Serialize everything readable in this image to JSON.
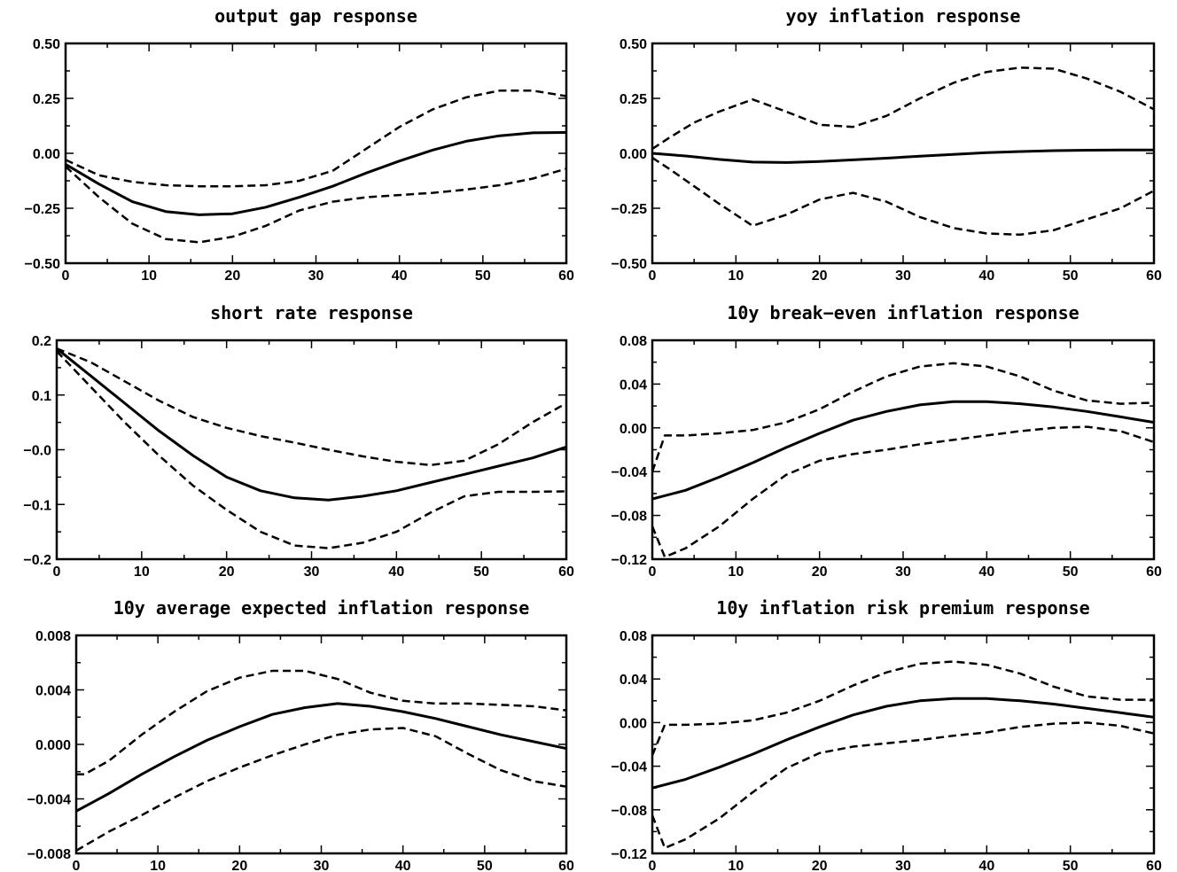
{
  "chart_data": [
    {
      "type": "line",
      "title": "output gap response",
      "xlim": [
        0,
        60
      ],
      "ylim": [
        -0.5,
        0.5
      ],
      "xticks": [
        0,
        10,
        20,
        30,
        40,
        50,
        60
      ],
      "yticks": [
        -0.5,
        -0.25,
        0.0,
        0.25,
        0.5
      ],
      "yticklabels": [
        "−0.50",
        "−0.25",
        "0.00",
        "0.25",
        "0.50"
      ],
      "grid": false,
      "series": [
        {
          "style": "solid",
          "x": [
            0,
            4,
            8,
            12,
            16,
            20,
            24,
            28,
            32,
            36,
            40,
            44,
            48,
            52,
            56,
            60
          ],
          "y": [
            -0.05,
            -0.14,
            -0.22,
            -0.265,
            -0.28,
            -0.275,
            -0.245,
            -0.2,
            -0.15,
            -0.09,
            -0.035,
            0.015,
            0.055,
            0.08,
            0.093,
            0.095
          ]
        },
        {
          "style": "dashed",
          "x": [
            0,
            4,
            8,
            12,
            16,
            20,
            24,
            28,
            32,
            36,
            40,
            44,
            48,
            52,
            56,
            60
          ],
          "y": [
            -0.03,
            -0.1,
            -0.13,
            -0.145,
            -0.15,
            -0.15,
            -0.145,
            -0.125,
            -0.08,
            0.02,
            0.12,
            0.2,
            0.255,
            0.285,
            0.285,
            0.26
          ]
        },
        {
          "style": "dashed",
          "x": [
            0,
            4,
            8,
            12,
            16,
            20,
            24,
            28,
            32,
            36,
            40,
            44,
            48,
            52,
            56,
            60
          ],
          "y": [
            -0.06,
            -0.2,
            -0.32,
            -0.39,
            -0.405,
            -0.38,
            -0.33,
            -0.26,
            -0.22,
            -0.2,
            -0.19,
            -0.18,
            -0.165,
            -0.145,
            -0.115,
            -0.07
          ]
        }
      ]
    },
    {
      "type": "line",
      "title": "yoy inflation response",
      "xlim": [
        0,
        60
      ],
      "ylim": [
        -0.5,
        0.5
      ],
      "xticks": [
        0,
        10,
        20,
        30,
        40,
        50,
        60
      ],
      "yticks": [
        -0.5,
        -0.25,
        0.0,
        0.25,
        0.5
      ],
      "yticklabels": [
        "−0.50",
        "−0.25",
        "0.00",
        "0.25",
        "0.50"
      ],
      "grid": false,
      "series": [
        {
          "style": "solid",
          "x": [
            0,
            4,
            8,
            12,
            16,
            20,
            24,
            28,
            32,
            36,
            40,
            44,
            48,
            52,
            56,
            60
          ],
          "y": [
            0.0,
            -0.012,
            -0.028,
            -0.04,
            -0.042,
            -0.037,
            -0.03,
            -0.022,
            -0.013,
            -0.005,
            0.003,
            0.008,
            0.012,
            0.014,
            0.015,
            0.015
          ]
        },
        {
          "style": "dashed",
          "x": [
            0,
            2,
            5,
            8,
            12,
            16,
            20,
            24,
            28,
            32,
            36,
            40,
            44,
            48,
            52,
            56,
            60
          ],
          "y": [
            0.02,
            0.07,
            0.14,
            0.19,
            0.245,
            0.19,
            0.13,
            0.12,
            0.17,
            0.25,
            0.32,
            0.37,
            0.39,
            0.385,
            0.34,
            0.28,
            0.2
          ]
        },
        {
          "style": "dashed",
          "x": [
            0,
            2,
            5,
            8,
            12,
            16,
            20,
            24,
            28,
            32,
            36,
            40,
            44,
            48,
            52,
            56,
            60
          ],
          "y": [
            -0.02,
            -0.07,
            -0.15,
            -0.23,
            -0.33,
            -0.28,
            -0.21,
            -0.18,
            -0.22,
            -0.29,
            -0.34,
            -0.365,
            -0.37,
            -0.35,
            -0.3,
            -0.25,
            -0.17
          ]
        }
      ]
    },
    {
      "type": "line",
      "title": "short rate response",
      "xlim": [
        0,
        60
      ],
      "ylim": [
        -0.2,
        0.2
      ],
      "xticks": [
        0,
        10,
        20,
        30,
        40,
        50,
        60
      ],
      "yticks": [
        -0.2,
        -0.1,
        0.0,
        0.1,
        0.2
      ],
      "yticklabels": [
        "−0.2",
        "−0.1",
        "−0.0",
        "0.1",
        "0.2"
      ],
      "grid": false,
      "series": [
        {
          "style": "solid",
          "x": [
            0,
            4,
            8,
            12,
            16,
            20,
            24,
            28,
            32,
            36,
            40,
            44,
            48,
            52,
            56,
            60
          ],
          "y": [
            0.185,
            0.135,
            0.085,
            0.035,
            -0.01,
            -0.05,
            -0.075,
            -0.088,
            -0.092,
            -0.085,
            -0.075,
            -0.06,
            -0.045,
            -0.03,
            -0.015,
            0.005
          ]
        },
        {
          "style": "dashed",
          "x": [
            0,
            4,
            8,
            12,
            16,
            20,
            24,
            28,
            32,
            36,
            40,
            44,
            48,
            52,
            56,
            60
          ],
          "y": [
            0.185,
            0.16,
            0.125,
            0.09,
            0.06,
            0.04,
            0.025,
            0.013,
            0.0,
            -0.012,
            -0.022,
            -0.028,
            -0.02,
            0.01,
            0.05,
            0.085
          ]
        },
        {
          "style": "dashed",
          "x": [
            0,
            4,
            8,
            12,
            16,
            20,
            24,
            28,
            32,
            36,
            40,
            44,
            48,
            52,
            56,
            60
          ],
          "y": [
            0.18,
            0.115,
            0.05,
            -0.01,
            -0.065,
            -0.11,
            -0.15,
            -0.175,
            -0.18,
            -0.17,
            -0.15,
            -0.115,
            -0.085,
            -0.077,
            -0.077,
            -0.076
          ]
        }
      ]
    },
    {
      "type": "line",
      "title": "10y break−even inflation response",
      "xlim": [
        0,
        60
      ],
      "ylim": [
        -0.12,
        0.08
      ],
      "xticks": [
        0,
        10,
        20,
        30,
        40,
        50,
        60
      ],
      "yticks": [
        -0.12,
        -0.08,
        -0.04,
        0.0,
        0.04,
        0.08
      ],
      "yticklabels": [
        "−0.12",
        "−0.08",
        "−0.04",
        "0.00",
        "0.04",
        "0.08"
      ],
      "grid": false,
      "series": [
        {
          "style": "solid",
          "x": [
            0,
            4,
            8,
            12,
            16,
            20,
            24,
            28,
            32,
            36,
            40,
            44,
            48,
            52,
            56,
            60
          ],
          "y": [
            -0.065,
            -0.057,
            -0.045,
            -0.032,
            -0.018,
            -0.005,
            0.007,
            0.015,
            0.021,
            0.024,
            0.024,
            0.022,
            0.019,
            0.015,
            0.01,
            0.005
          ]
        },
        {
          "style": "dashed",
          "x": [
            0,
            1.5,
            4,
            8,
            12,
            16,
            20,
            24,
            28,
            32,
            36,
            40,
            44,
            48,
            52,
            56,
            60
          ],
          "y": [
            -0.04,
            -0.007,
            -0.007,
            -0.005,
            -0.002,
            0.005,
            0.017,
            0.033,
            0.047,
            0.056,
            0.059,
            0.056,
            0.047,
            0.034,
            0.025,
            0.022,
            0.023
          ]
        },
        {
          "style": "dashed",
          "x": [
            0,
            1.5,
            4,
            8,
            12,
            16,
            20,
            24,
            28,
            32,
            36,
            40,
            44,
            48,
            52,
            56,
            60
          ],
          "y": [
            -0.09,
            -0.118,
            -0.11,
            -0.09,
            -0.065,
            -0.043,
            -0.03,
            -0.024,
            -0.02,
            -0.015,
            -0.011,
            -0.007,
            -0.003,
            0.0,
            0.001,
            -0.003,
            -0.013
          ]
        }
      ]
    },
    {
      "type": "line",
      "title": "10y average expected inflation response",
      "xlim": [
        0,
        60
      ],
      "ylim": [
        -0.008,
        0.008
      ],
      "xticks": [
        0,
        10,
        20,
        30,
        40,
        50,
        60
      ],
      "yticks": [
        -0.008,
        -0.004,
        0.0,
        0.004,
        0.008
      ],
      "yticklabels": [
        "−0.008",
        "−0.004",
        "0.000",
        "0.004",
        "0.008"
      ],
      "grid": false,
      "series": [
        {
          "style": "solid",
          "x": [
            0,
            4,
            8,
            12,
            16,
            20,
            24,
            28,
            32,
            36,
            40,
            44,
            48,
            52,
            56,
            60
          ],
          "y": [
            -0.0049,
            -0.0036,
            -0.0022,
            -0.0009,
            0.0003,
            0.0013,
            0.0022,
            0.0027,
            0.003,
            0.0028,
            0.0024,
            0.0019,
            0.0013,
            0.0007,
            0.0002,
            -0.0003
          ]
        },
        {
          "style": "dashed",
          "x": [
            0,
            1,
            4,
            8,
            12,
            16,
            20,
            24,
            28,
            32,
            36,
            40,
            44,
            48,
            52,
            56,
            60
          ],
          "y": [
            -0.0022,
            -0.0022,
            -0.0012,
            0.0007,
            0.0024,
            0.0039,
            0.0049,
            0.0054,
            0.0054,
            0.0048,
            0.0038,
            0.0032,
            0.003,
            0.003,
            0.0029,
            0.0028,
            0.0025
          ]
        },
        {
          "style": "dashed",
          "x": [
            0,
            4,
            8,
            12,
            16,
            20,
            24,
            28,
            32,
            36,
            40,
            44,
            48,
            52,
            56,
            60
          ],
          "y": [
            -0.0078,
            -0.0064,
            -0.0052,
            -0.0039,
            -0.0027,
            -0.0017,
            -0.0008,
            0.0,
            0.0007,
            0.0011,
            0.0012,
            0.0006,
            -0.0007,
            -0.0019,
            -0.0027,
            -0.0031
          ]
        }
      ]
    },
    {
      "type": "line",
      "title": "10y inflation risk premium response",
      "xlim": [
        0,
        60
      ],
      "ylim": [
        -0.12,
        0.08
      ],
      "xticks": [
        0,
        10,
        20,
        30,
        40,
        50,
        60
      ],
      "yticks": [
        -0.12,
        -0.08,
        -0.04,
        0.0,
        0.04,
        0.08
      ],
      "yticklabels": [
        "−0.12",
        "−0.08",
        "−0.04",
        "0.00",
        "0.04",
        "0.08"
      ],
      "grid": false,
      "series": [
        {
          "style": "solid",
          "x": [
            0,
            4,
            8,
            12,
            16,
            20,
            24,
            28,
            32,
            36,
            40,
            44,
            48,
            52,
            56,
            60
          ],
          "y": [
            -0.06,
            -0.052,
            -0.041,
            -0.029,
            -0.016,
            -0.004,
            0.007,
            0.015,
            0.02,
            0.022,
            0.022,
            0.02,
            0.017,
            0.013,
            0.009,
            0.005
          ]
        },
        {
          "style": "dashed",
          "x": [
            0,
            1.5,
            4,
            8,
            12,
            16,
            20,
            24,
            28,
            32,
            36,
            40,
            44,
            48,
            52,
            56,
            60
          ],
          "y": [
            -0.03,
            -0.002,
            -0.002,
            -0.001,
            0.002,
            0.009,
            0.02,
            0.034,
            0.046,
            0.054,
            0.056,
            0.053,
            0.045,
            0.033,
            0.024,
            0.021,
            0.021
          ]
        },
        {
          "style": "dashed",
          "x": [
            0,
            1.5,
            4,
            8,
            12,
            16,
            20,
            24,
            28,
            32,
            36,
            40,
            44,
            48,
            52,
            56,
            60
          ],
          "y": [
            -0.085,
            -0.115,
            -0.107,
            -0.088,
            -0.064,
            -0.042,
            -0.028,
            -0.022,
            -0.019,
            -0.016,
            -0.012,
            -0.009,
            -0.004,
            -0.001,
            0.0,
            -0.003,
            -0.01
          ]
        }
      ]
    }
  ]
}
